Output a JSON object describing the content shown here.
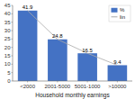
{
  "chart_data": {
    "type": "bar",
    "categories": [
      "<2000",
      "2001-5000",
      "5001-1000",
      ">10000"
    ],
    "series": [
      {
        "name": "%",
        "type": "bar",
        "color": "#4472C4",
        "values": [
          41.9,
          24.8,
          16.5,
          9.4
        ]
      },
      {
        "name": "lin",
        "type": "line",
        "color": "#aaaaaa",
        "values": [
          41.9,
          24.8,
          16.5,
          9.4
        ]
      }
    ],
    "x_label": "Household monthly earnings",
    "ylim": [
      0,
      45
    ],
    "yticks": [
      0,
      5,
      10,
      15,
      20,
      25,
      30,
      35,
      40,
      45
    ],
    "data_labels": true,
    "grid": false,
    "legend": "upper right"
  }
}
